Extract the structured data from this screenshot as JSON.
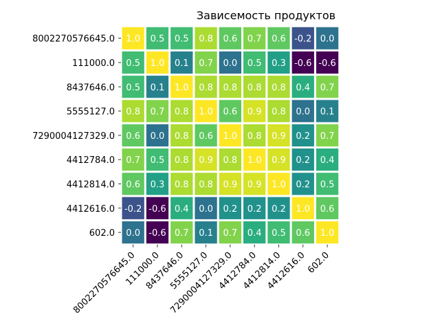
{
  "chart_data": {
    "type": "heatmap",
    "title": "Зависемость продуктов",
    "xlabel": "",
    "ylabel": "",
    "labels": [
      "8002270576645.0",
      "111000.0",
      "8437646.0",
      "5555127.0",
      "7290004127329.0",
      "4412784.0",
      "4412814.0",
      "4412616.0",
      "602.0"
    ],
    "matrix": [
      [
        1.0,
        0.5,
        0.5,
        0.8,
        0.6,
        0.7,
        0.6,
        -0.2,
        -0.0
      ],
      [
        0.5,
        1.0,
        0.1,
        0.7,
        0.0,
        0.5,
        0.3,
        -0.6,
        -0.6
      ],
      [
        0.5,
        0.1,
        1.0,
        0.8,
        0.8,
        0.8,
        0.8,
        0.4,
        0.7
      ],
      [
        0.8,
        0.7,
        0.8,
        1.0,
        0.6,
        0.9,
        0.8,
        -0.0,
        0.1
      ],
      [
        0.6,
        0.0,
        0.8,
        0.6,
        1.0,
        0.8,
        0.9,
        0.2,
        0.7
      ],
      [
        0.7,
        0.5,
        0.8,
        0.9,
        0.8,
        1.0,
        0.9,
        0.2,
        0.4
      ],
      [
        0.6,
        0.3,
        0.8,
        0.8,
        0.9,
        0.9,
        1.0,
        0.2,
        0.5
      ],
      [
        -0.2,
        -0.6,
        0.4,
        -0.0,
        0.2,
        0.2,
        0.2,
        1.0,
        0.6
      ],
      [
        -0.0,
        -0.6,
        0.7,
        0.1,
        0.7,
        0.4,
        0.5,
        0.6,
        1.0
      ]
    ],
    "value_range": [
      -0.6,
      1.0
    ],
    "colormap": "viridis",
    "annotated": true,
    "grid": false,
    "legend": "none"
  }
}
